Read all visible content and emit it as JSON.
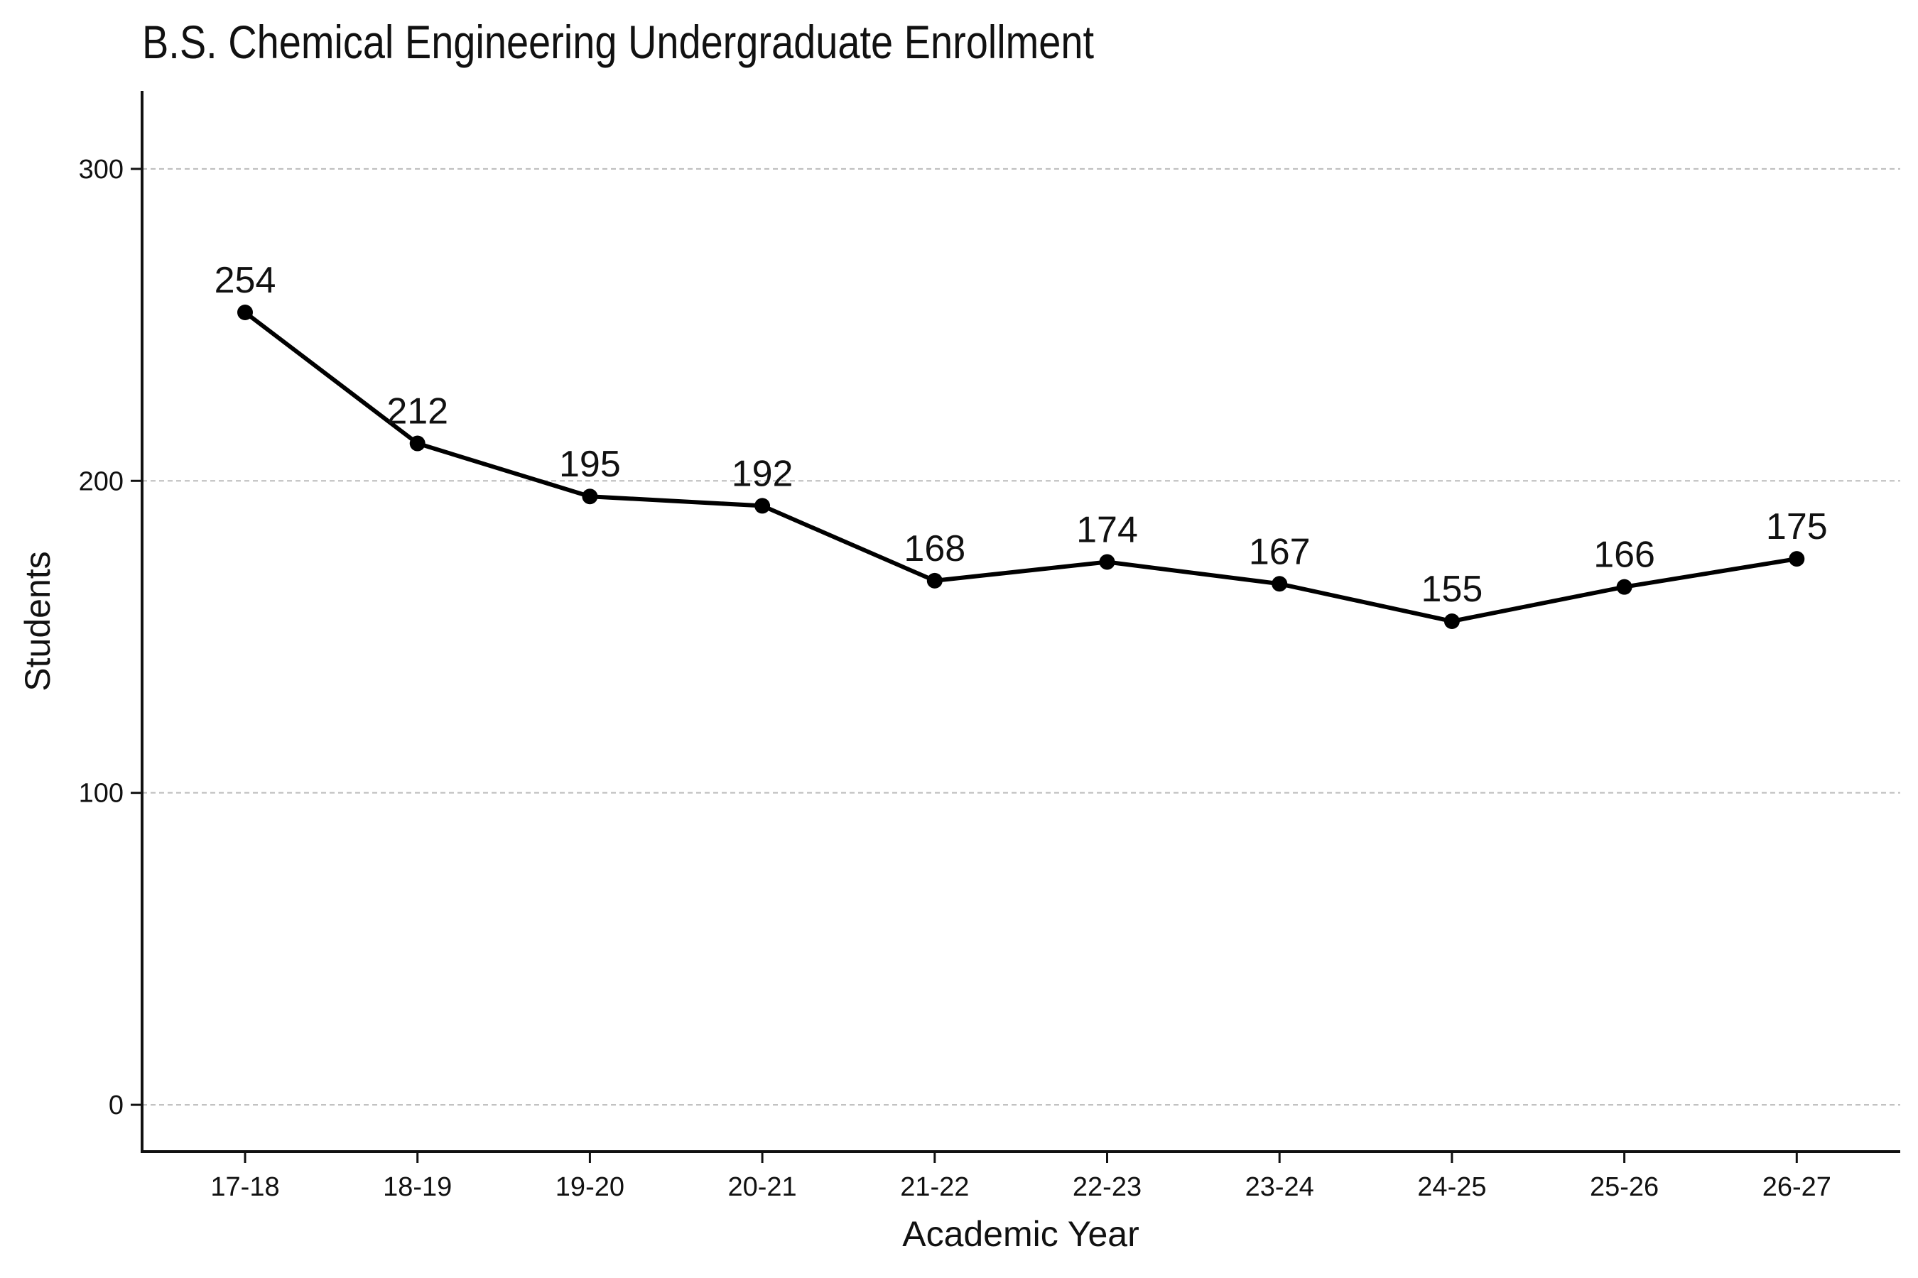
{
  "chart_data": {
    "type": "line",
    "title": "B.S. Chemical Engineering Undergraduate Enrollment",
    "xlabel": "Academic Year",
    "ylabel": "Students",
    "categories": [
      "17-18",
      "18-19",
      "19-20",
      "20-21",
      "21-22",
      "22-23",
      "23-24",
      "24-25",
      "25-26",
      "26-27"
    ],
    "values": [
      254,
      212,
      195,
      192,
      168,
      174,
      167,
      155,
      166,
      175
    ],
    "data_labels": [
      "254",
      "212",
      "195",
      "192",
      "168",
      "174",
      "167",
      "155",
      "166",
      "175"
    ],
    "ylim": [
      -15,
      325
    ],
    "yticks": [
      0,
      100,
      200,
      300
    ],
    "ytick_labels": [
      "0",
      "100",
      "200",
      "300"
    ],
    "grid": true,
    "grid_axis": "y",
    "legend": "none",
    "line_color": "#000000",
    "marker": "circle"
  }
}
